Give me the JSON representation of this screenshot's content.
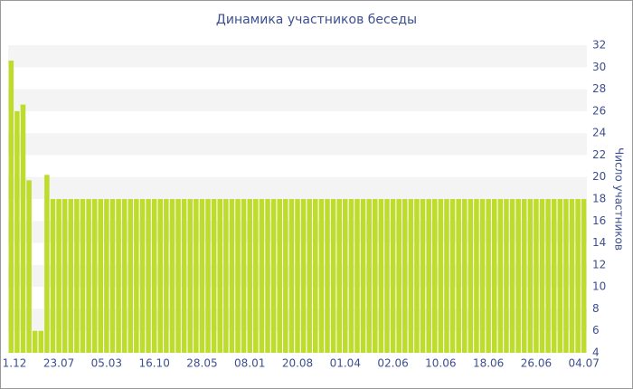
{
  "chart_data": {
    "type": "bar",
    "title": "Динамика участников беседы",
    "y_axis_label": "Число участников",
    "categories": [
      "1.12",
      null,
      null,
      null,
      null,
      null,
      null,
      null,
      "23.07",
      null,
      null,
      null,
      null,
      null,
      null,
      null,
      "05.03",
      null,
      null,
      null,
      null,
      null,
      null,
      null,
      "16.10",
      null,
      null,
      null,
      null,
      null,
      null,
      null,
      "28.05",
      null,
      null,
      null,
      null,
      null,
      null,
      null,
      "08.01",
      null,
      null,
      null,
      null,
      null,
      null,
      null,
      "20.08",
      null,
      null,
      null,
      null,
      null,
      null,
      null,
      "01.04",
      null,
      null,
      null,
      null,
      null,
      null,
      null,
      "02.06",
      null,
      null,
      null,
      null,
      null,
      null,
      null,
      "10.06",
      null,
      null,
      null,
      null,
      null,
      null,
      null,
      "18.06",
      null,
      null,
      null,
      null,
      null,
      null,
      null,
      "26.06",
      null,
      null,
      null,
      null,
      null,
      null,
      null,
      "04.07"
    ],
    "values": [
      30.6,
      26,
      26.6,
      19.7,
      6,
      6,
      20.2,
      18,
      18,
      18,
      18,
      18,
      18,
      18,
      18,
      18,
      18,
      18,
      18,
      18,
      18,
      18,
      18,
      18,
      18,
      18,
      18,
      18,
      18,
      18,
      18,
      18,
      18,
      18,
      18,
      18,
      18,
      18,
      18,
      18,
      18,
      18,
      18,
      18,
      18,
      18,
      18,
      18,
      18,
      18,
      18,
      18,
      18,
      18,
      18,
      18,
      18,
      18,
      18,
      18,
      18,
      18,
      18,
      18,
      18,
      18,
      18,
      18,
      18,
      18,
      18,
      18,
      18,
      18,
      18,
      18,
      18,
      18,
      18,
      18,
      18,
      18,
      18,
      18,
      18,
      18,
      18,
      18,
      18,
      18,
      18,
      18,
      18,
      18,
      18,
      18,
      18
    ],
    "color": "#bddc2e",
    "ylim": [
      4,
      32
    ],
    "yticks": [
      4,
      6,
      8,
      10,
      12,
      14,
      16,
      18,
      20,
      22,
      24,
      26,
      28,
      30,
      32
    ],
    "grid": "bands"
  }
}
